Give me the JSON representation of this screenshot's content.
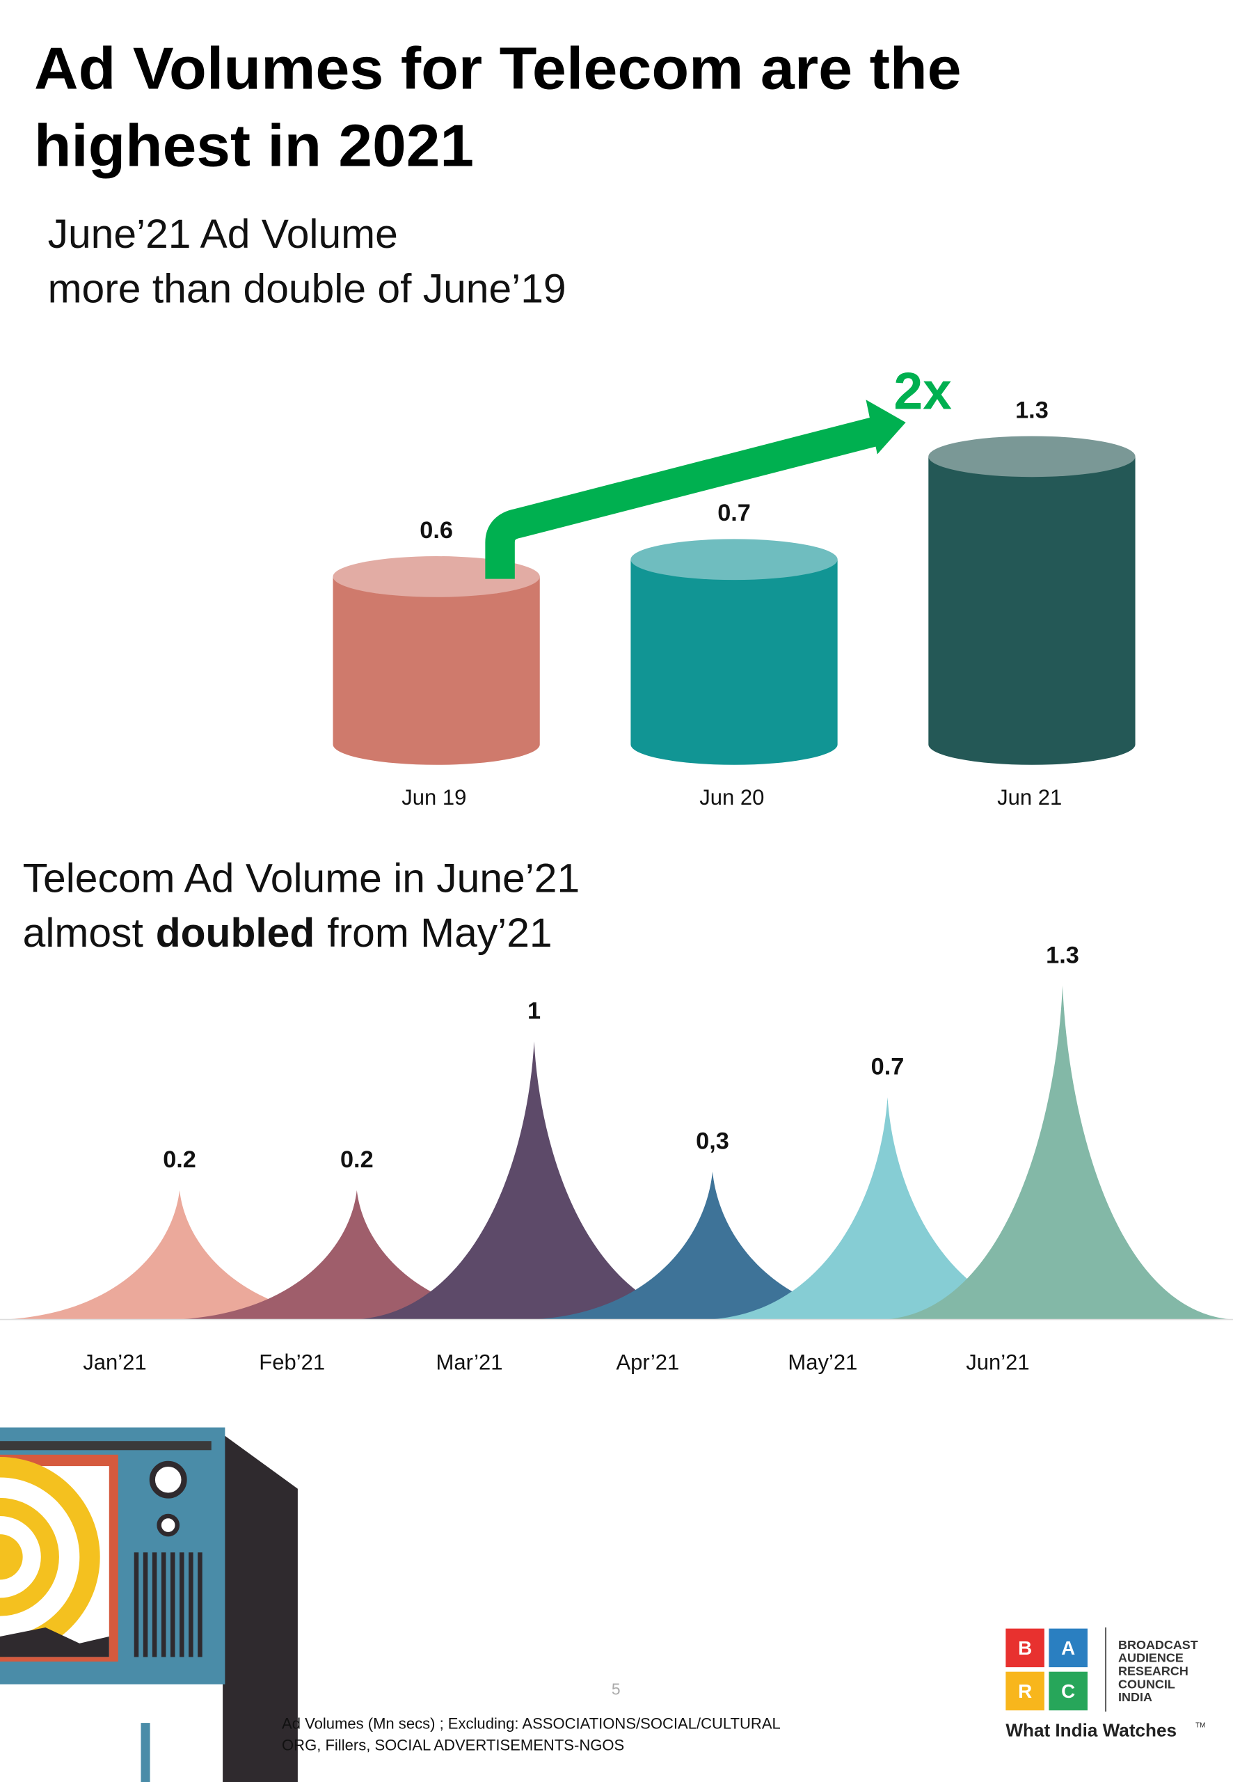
{
  "header": {
    "title_lines": [
      "Ad Volumes for Telecom are the",
      "highest in 2021"
    ]
  },
  "chart_data": [
    {
      "type": "cylinder",
      "title_lines": [
        "June’21 Ad Volume",
        "more than double of June’19"
      ],
      "categories": [
        "Jun 19",
        "Jun 20",
        "Jun 21"
      ],
      "values": [
        0.6,
        0.7,
        1.3
      ],
      "colors": [
        "#cf7a6c",
        "#119594",
        "#245856"
      ],
      "top_colors": [
        "#e2aca4",
        "#6fbdbf",
        "#7a9896"
      ],
      "annotation": "2x",
      "annotation_color": "#00b050"
    },
    {
      "type": "peak",
      "title_line1": "Telecom Ad Volume in June’21",
      "title_line2": {
        "pre": "almost",
        "bold": "doubled",
        "post": "from May’21"
      },
      "categories": [
        "Jan’21",
        "Feb’21",
        "Mar’21",
        "Apr’21",
        "May’21",
        "Jun’21"
      ],
      "values": [
        0.2,
        0.2,
        1,
        0.3,
        0.7,
        1.3
      ],
      "value_labels": [
        "0.2",
        "0.2",
        "1",
        "0,3",
        "0.7",
        "1.3"
      ],
      "colors": [
        "#eba99b",
        "#9f5e6b",
        "#5d4a69",
        "#3e7398",
        "#86cdd4",
        "#83b8a7"
      ]
    }
  ],
  "footer": {
    "page": "5",
    "note_lines": [
      "Ad Volumes (Mn secs) ; Excluding: ASSOCIATIONS/SOCIAL/CULTURAL",
      "ORG, Fillers, SOCIAL ADVERTISEMENTS-NGOS"
    ],
    "logo": {
      "letters": [
        "B",
        "A",
        "R",
        "C"
      ],
      "name_lines": [
        "BROADCAST",
        "AUDIENCE",
        "RESEARCH",
        "COUNCIL",
        "INDIA"
      ],
      "tagline": "What India Watches",
      "tm": "TM"
    }
  }
}
